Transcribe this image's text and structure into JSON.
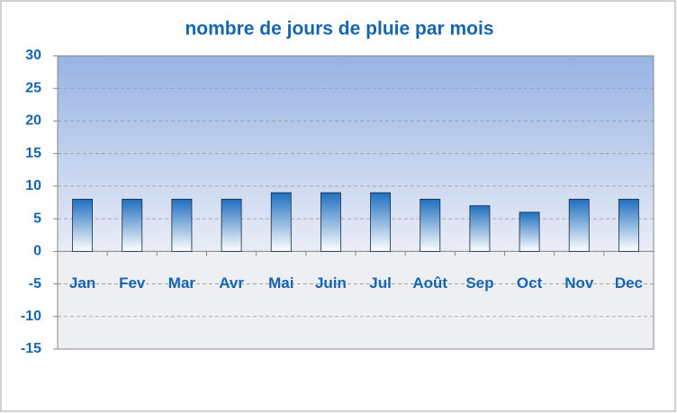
{
  "chart_data": {
    "type": "bar",
    "title": "nombre de jours de pluie par mois",
    "categories": [
      "Jan",
      "Fev",
      "Mar",
      "Avr",
      "Mai",
      "Juin",
      "Jul",
      "Août",
      "Sep",
      "Oct",
      "Nov",
      "Dec"
    ],
    "values": [
      8,
      8,
      8,
      8,
      9,
      9,
      9,
      8,
      7,
      6,
      8,
      8
    ],
    "color": "#1f6fc0",
    "ylim": [
      -15,
      30
    ],
    "yticks": [
      -15,
      -10,
      -5,
      0,
      5,
      10,
      15,
      20,
      25,
      30
    ],
    "grid": true
  }
}
